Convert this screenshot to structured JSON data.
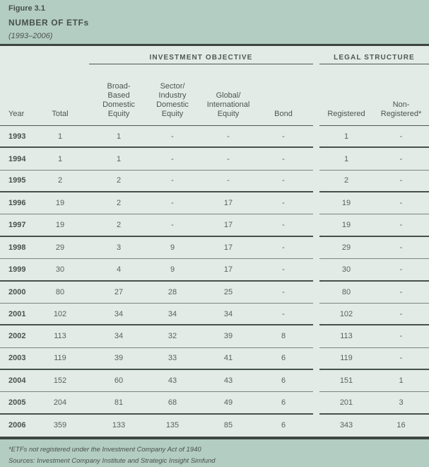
{
  "header": {
    "figure_label": "Figure 3.1",
    "title": "NUMBER OF ETFs",
    "subtitle": "(1993–2006)"
  },
  "table": {
    "groups": [
      "INVESTMENT OBJECTIVE",
      "LEGAL STRUCTURE"
    ],
    "columns": [
      {
        "key": "year",
        "label": "Year"
      },
      {
        "key": "total",
        "label": "Total"
      },
      {
        "key": "broad-based-domestic-equity",
        "label": "Broad-\nBased\nDomestic\nEquity"
      },
      {
        "key": "sector-industry-domestic-equity",
        "label": "Sector/\nIndustry\nDomestic\nEquity"
      },
      {
        "key": "global-international-equity",
        "label": "Global/\nInternational\nEquity"
      },
      {
        "key": "bond",
        "label": "Bond"
      },
      {
        "key": "registered",
        "label": "Registered"
      },
      {
        "key": "non-registered",
        "label": "Non-\nRegistered*"
      }
    ],
    "rows": [
      [
        "1993",
        "1",
        "1",
        "-",
        "-",
        "-",
        "1",
        "-"
      ],
      [
        "1994",
        "1",
        "1",
        "-",
        "-",
        "-",
        "1",
        "-"
      ],
      [
        "1995",
        "2",
        "2",
        "-",
        "-",
        "-",
        "2",
        "-"
      ],
      [
        "1996",
        "19",
        "2",
        "-",
        "17",
        "-",
        "19",
        "-"
      ],
      [
        "1997",
        "19",
        "2",
        "-",
        "17",
        "-",
        "19",
        "-"
      ],
      [
        "1998",
        "29",
        "3",
        "9",
        "17",
        "-",
        "29",
        "-"
      ],
      [
        "1999",
        "30",
        "4",
        "9",
        "17",
        "-",
        "30",
        "-"
      ],
      [
        "2000",
        "80",
        "27",
        "28",
        "25",
        "-",
        "80",
        "-"
      ],
      [
        "2001",
        "102",
        "34",
        "34",
        "34",
        "-",
        "102",
        "-"
      ],
      [
        "2002",
        "113",
        "34",
        "32",
        "39",
        "8",
        "113",
        "-"
      ],
      [
        "2003",
        "119",
        "39",
        "33",
        "41",
        "6",
        "119",
        "-"
      ],
      [
        "2004",
        "152",
        "60",
        "43",
        "43",
        "6",
        "151",
        "1"
      ],
      [
        "2005",
        "204",
        "81",
        "68",
        "49",
        "6",
        "201",
        "3"
      ],
      [
        "2006",
        "359",
        "133",
        "135",
        "85",
        "6",
        "343",
        "16"
      ]
    ]
  },
  "footer": {
    "note": "*ETFs not registered under the Investment Company Act of 1940",
    "sources": "Sources: Investment Company Institute and Strategic Insight Simfund"
  },
  "colors": {
    "header_background": "#b3cdc2",
    "table_background": "#e2ebe6",
    "heavy_rule": "#3d4643",
    "thick_row_rule": "#46514d",
    "thin_row_rule": "#7b867f",
    "text": "#4c5450"
  }
}
